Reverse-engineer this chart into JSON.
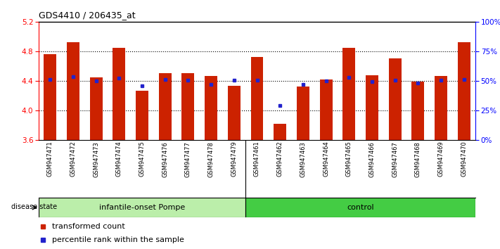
{
  "title": "GDS4410 / 206435_at",
  "samples": [
    "GSM947471",
    "GSM947472",
    "GSM947473",
    "GSM947474",
    "GSM947475",
    "GSM947476",
    "GSM947477",
    "GSM947478",
    "GSM947479",
    "GSM947461",
    "GSM947462",
    "GSM947463",
    "GSM947464",
    "GSM947465",
    "GSM947466",
    "GSM947467",
    "GSM947468",
    "GSM947469",
    "GSM947470"
  ],
  "transformed_count": [
    4.76,
    4.92,
    4.45,
    4.85,
    4.27,
    4.5,
    4.5,
    4.47,
    4.33,
    4.72,
    3.82,
    4.32,
    4.42,
    4.85,
    4.48,
    4.7,
    4.39,
    4.47,
    4.92
  ],
  "percentile_rank": [
    4.42,
    4.46,
    4.4,
    4.44,
    4.33,
    4.42,
    4.41,
    4.35,
    4.41,
    4.41,
    4.07,
    4.35,
    4.4,
    4.45,
    4.39,
    4.41,
    4.37,
    4.41,
    4.42
  ],
  "group1_label": "infantile-onset Pompe",
  "group2_label": "control",
  "group1_count": 9,
  "group2_count": 10,
  "disease_state_label": "disease state",
  "ylim_left": [
    3.6,
    5.2
  ],
  "ylim_right": [
    0,
    100
  ],
  "yticks_left": [
    3.6,
    4.0,
    4.4,
    4.8,
    5.2
  ],
  "yticks_right": [
    0,
    25,
    50,
    75,
    100
  ],
  "bar_color": "#cc2200",
  "marker_color": "#2222cc",
  "group1_bg": "#bbeeaa",
  "group2_bg": "#44cc44",
  "tick_area_bg": "#cccccc",
  "legend_bar_label": "transformed count",
  "legend_marker_label": "percentile rank within the sample"
}
